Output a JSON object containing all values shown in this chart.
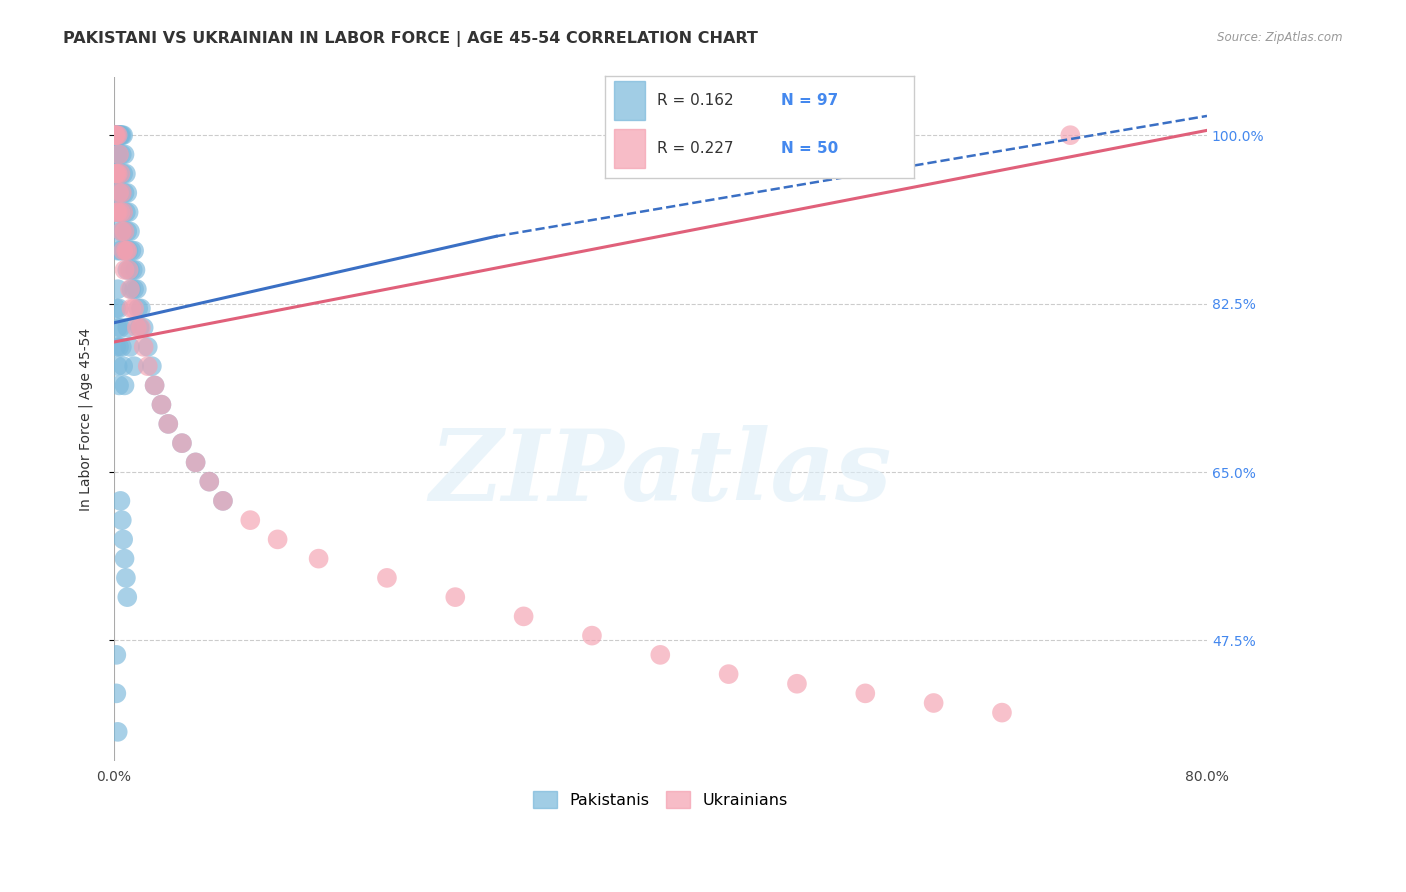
{
  "title": "PAKISTANI VS UKRAINIAN IN LABOR FORCE | AGE 45-54 CORRELATION CHART",
  "source": "Source: ZipAtlas.com",
  "ylabel": "In Labor Force | Age 45-54",
  "xlim": [
    0.0,
    0.8
  ],
  "ylim": [
    0.35,
    1.06
  ],
  "r_pakistani": 0.162,
  "n_pakistani": 97,
  "r_ukrainian": 0.227,
  "n_ukrainian": 50,
  "pakistani_color": "#7ab8db",
  "ukrainian_color": "#f4a0b0",
  "pakistani_line_color": "#3a6fc4",
  "ukrainian_line_color": "#e0607a",
  "legend_label_pakistani": "Pakistanis",
  "legend_label_ukrainian": "Ukrainians",
  "grid_color": "#cccccc",
  "background_color": "#ffffff",
  "title_fontsize": 11.5,
  "axis_label_fontsize": 10,
  "tick_fontsize": 10,
  "right_tick_color": "#4488ee",
  "pk_line_x0": 0.0,
  "pk_line_x_solid_end": 0.28,
  "pk_line_x1": 0.8,
  "pk_line_y0": 0.805,
  "pk_line_y1_solid": 0.895,
  "pk_line_y1": 1.02,
  "uk_line_x0": 0.0,
  "uk_line_x1": 0.8,
  "uk_line_y0": 0.785,
  "uk_line_y1": 1.005,
  "ytick_positions": [
    0.475,
    0.65,
    0.825,
    1.0
  ],
  "ytick_labels": [
    "47.5%",
    "65.0%",
    "82.5%",
    "100.0%"
  ],
  "xtick_positions": [
    0.0,
    0.1,
    0.2,
    0.3,
    0.4,
    0.5,
    0.6,
    0.7,
    0.8
  ],
  "xtick_labels": [
    "0.0%",
    "",
    "",
    "",
    "",
    "",
    "",
    "",
    "80.0%"
  ],
  "pk_x": [
    0.001,
    0.001,
    0.001,
    0.002,
    0.002,
    0.002,
    0.002,
    0.002,
    0.002,
    0.002,
    0.002,
    0.002,
    0.003,
    0.003,
    0.003,
    0.003,
    0.003,
    0.003,
    0.003,
    0.003,
    0.003,
    0.003,
    0.004,
    0.004,
    0.004,
    0.004,
    0.004,
    0.005,
    0.005,
    0.005,
    0.005,
    0.005,
    0.006,
    0.006,
    0.006,
    0.006,
    0.007,
    0.007,
    0.007,
    0.007,
    0.008,
    0.008,
    0.008,
    0.009,
    0.009,
    0.009,
    0.01,
    0.01,
    0.01,
    0.011,
    0.011,
    0.012,
    0.012,
    0.013,
    0.013,
    0.014,
    0.015,
    0.015,
    0.016,
    0.017,
    0.018,
    0.019,
    0.02,
    0.022,
    0.025,
    0.028,
    0.03,
    0.035,
    0.04,
    0.05,
    0.06,
    0.07,
    0.08,
    0.01,
    0.012,
    0.015,
    0.003,
    0.004,
    0.002,
    0.002,
    0.003,
    0.003,
    0.004,
    0.004,
    0.005,
    0.006,
    0.007,
    0.008,
    0.005,
    0.006,
    0.007,
    0.008,
    0.009,
    0.01,
    0.002,
    0.002,
    0.003
  ],
  "pk_y": [
    1.0,
    1.0,
    1.0,
    1.0,
    1.0,
    1.0,
    1.0,
    1.0,
    0.98,
    0.96,
    0.94,
    0.92,
    1.0,
    1.0,
    1.0,
    1.0,
    0.98,
    0.96,
    0.94,
    0.92,
    0.9,
    0.88,
    1.0,
    1.0,
    0.98,
    0.96,
    0.94,
    1.0,
    1.0,
    0.96,
    0.92,
    0.88,
    1.0,
    0.98,
    0.94,
    0.9,
    1.0,
    0.96,
    0.92,
    0.88,
    0.98,
    0.94,
    0.9,
    0.96,
    0.92,
    0.88,
    0.94,
    0.9,
    0.86,
    0.92,
    0.88,
    0.9,
    0.86,
    0.88,
    0.84,
    0.86,
    0.88,
    0.84,
    0.86,
    0.84,
    0.82,
    0.8,
    0.82,
    0.8,
    0.78,
    0.76,
    0.74,
    0.72,
    0.7,
    0.68,
    0.66,
    0.64,
    0.62,
    0.8,
    0.78,
    0.76,
    0.84,
    0.82,
    0.82,
    0.78,
    0.8,
    0.76,
    0.78,
    0.74,
    0.8,
    0.78,
    0.76,
    0.74,
    0.62,
    0.6,
    0.58,
    0.56,
    0.54,
    0.52,
    0.46,
    0.42,
    0.38
  ],
  "uk_x": [
    0.001,
    0.001,
    0.001,
    0.002,
    0.002,
    0.002,
    0.003,
    0.003,
    0.003,
    0.004,
    0.004,
    0.005,
    0.005,
    0.006,
    0.006,
    0.007,
    0.007,
    0.008,
    0.008,
    0.009,
    0.01,
    0.011,
    0.012,
    0.013,
    0.015,
    0.017,
    0.02,
    0.022,
    0.025,
    0.03,
    0.035,
    0.04,
    0.05,
    0.06,
    0.07,
    0.08,
    0.1,
    0.12,
    0.15,
    0.2,
    0.25,
    0.3,
    0.35,
    0.4,
    0.45,
    0.5,
    0.55,
    0.6,
    0.65,
    0.7
  ],
  "uk_y": [
    1.0,
    1.0,
    0.96,
    1.0,
    0.96,
    0.92,
    1.0,
    0.96,
    0.92,
    0.98,
    0.94,
    0.96,
    0.92,
    0.94,
    0.9,
    0.92,
    0.88,
    0.9,
    0.86,
    0.88,
    0.88,
    0.86,
    0.84,
    0.82,
    0.82,
    0.8,
    0.8,
    0.78,
    0.76,
    0.74,
    0.72,
    0.7,
    0.68,
    0.66,
    0.64,
    0.62,
    0.6,
    0.58,
    0.56,
    0.54,
    0.52,
    0.5,
    0.48,
    0.46,
    0.44,
    0.43,
    0.42,
    0.41,
    0.4,
    1.0
  ]
}
